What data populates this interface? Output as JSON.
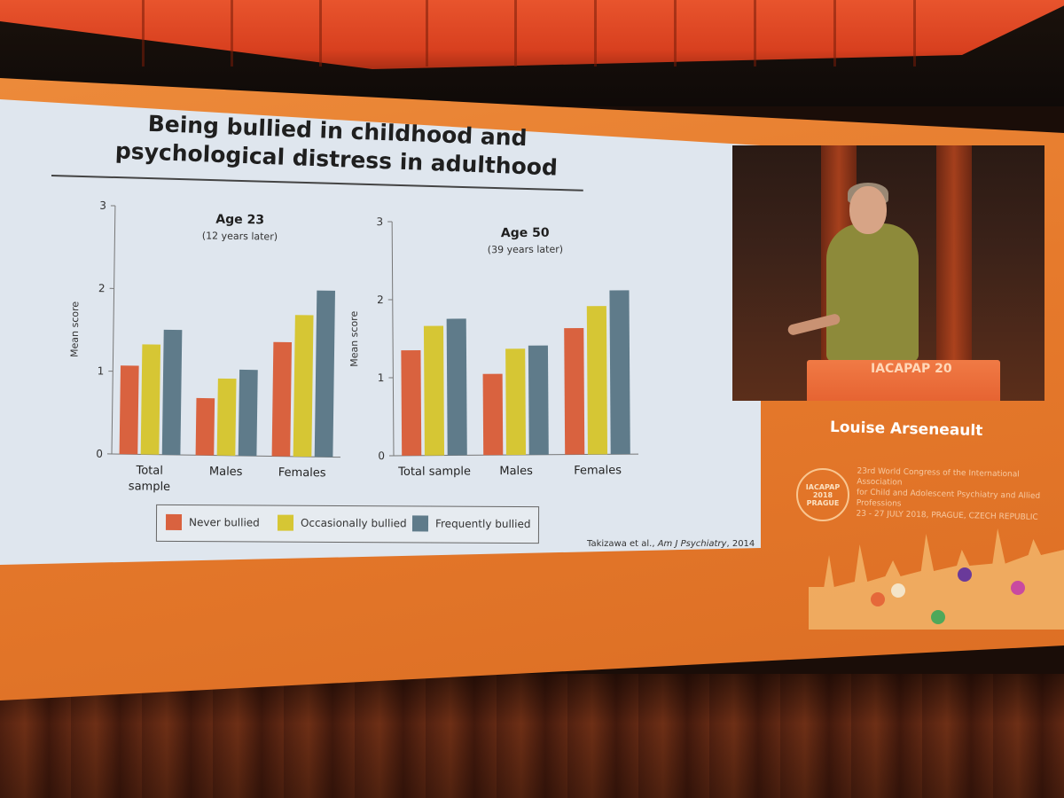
{
  "slide": {
    "title_line1": "Being bullied in childhood and",
    "title_line2": "psychological distress in adulthood",
    "citation_authors": "Takizawa et al., ",
    "citation_journal": "Am J Psychiatry",
    "citation_year": ", 2014"
  },
  "legend": {
    "items": [
      {
        "label": "Never bullied",
        "color": "#d9623f"
      },
      {
        "label": "Occasionally bullied",
        "color": "#d6c634"
      },
      {
        "label": "Frequently bullied",
        "color": "#5f7b8a"
      }
    ]
  },
  "speaker": {
    "name": "Louise Arseneault",
    "podium_text": "IACAPAP 20"
  },
  "congress": {
    "logo_text": "IACAPAP 2018 PRAGUE",
    "line1": "23rd World Congress of the International Association",
    "line2": "for Child and Adolescent Psychiatry and Allied Professions",
    "line3": "23 - 27 JULY 2018, PRAGUE, CZECH REPUBLIC"
  },
  "chart_data": [
    {
      "type": "bar",
      "title": "Age 23",
      "subtitle": "(12 years later)",
      "ylabel": "Mean score",
      "ylim": [
        0,
        3
      ],
      "yticks": [
        0,
        1,
        2,
        3
      ],
      "categories": [
        "Total sample",
        "Males",
        "Females"
      ],
      "category_lines": [
        [
          "Total",
          "sample"
        ],
        [
          "Males"
        ],
        [
          "Females"
        ]
      ],
      "series": [
        {
          "name": "Never bullied",
          "values": [
            1.07,
            0.69,
            1.38
          ]
        },
        {
          "name": "Occasionally bullied",
          "values": [
            1.33,
            0.93,
            1.71
          ]
        },
        {
          "name": "Frequently bullied",
          "values": [
            1.51,
            1.04,
            2.01
          ]
        }
      ]
    },
    {
      "type": "bar",
      "title": "Age 50",
      "subtitle": "(39 years later)",
      "ylabel": "Mean score",
      "ylim": [
        0,
        3
      ],
      "yticks": [
        0,
        1,
        2,
        3
      ],
      "categories": [
        "Total sample",
        "Males",
        "Females"
      ],
      "category_lines": [
        [
          "Total sample"
        ],
        [
          "Males"
        ],
        [
          "Females"
        ]
      ],
      "series": [
        {
          "name": "Never bullied",
          "values": [
            1.35,
            1.04,
            1.62
          ]
        },
        {
          "name": "Occasionally bullied",
          "values": [
            1.66,
            1.36,
            1.9
          ]
        },
        {
          "name": "Frequently bullied",
          "values": [
            1.75,
            1.4,
            2.1
          ]
        }
      ]
    }
  ]
}
